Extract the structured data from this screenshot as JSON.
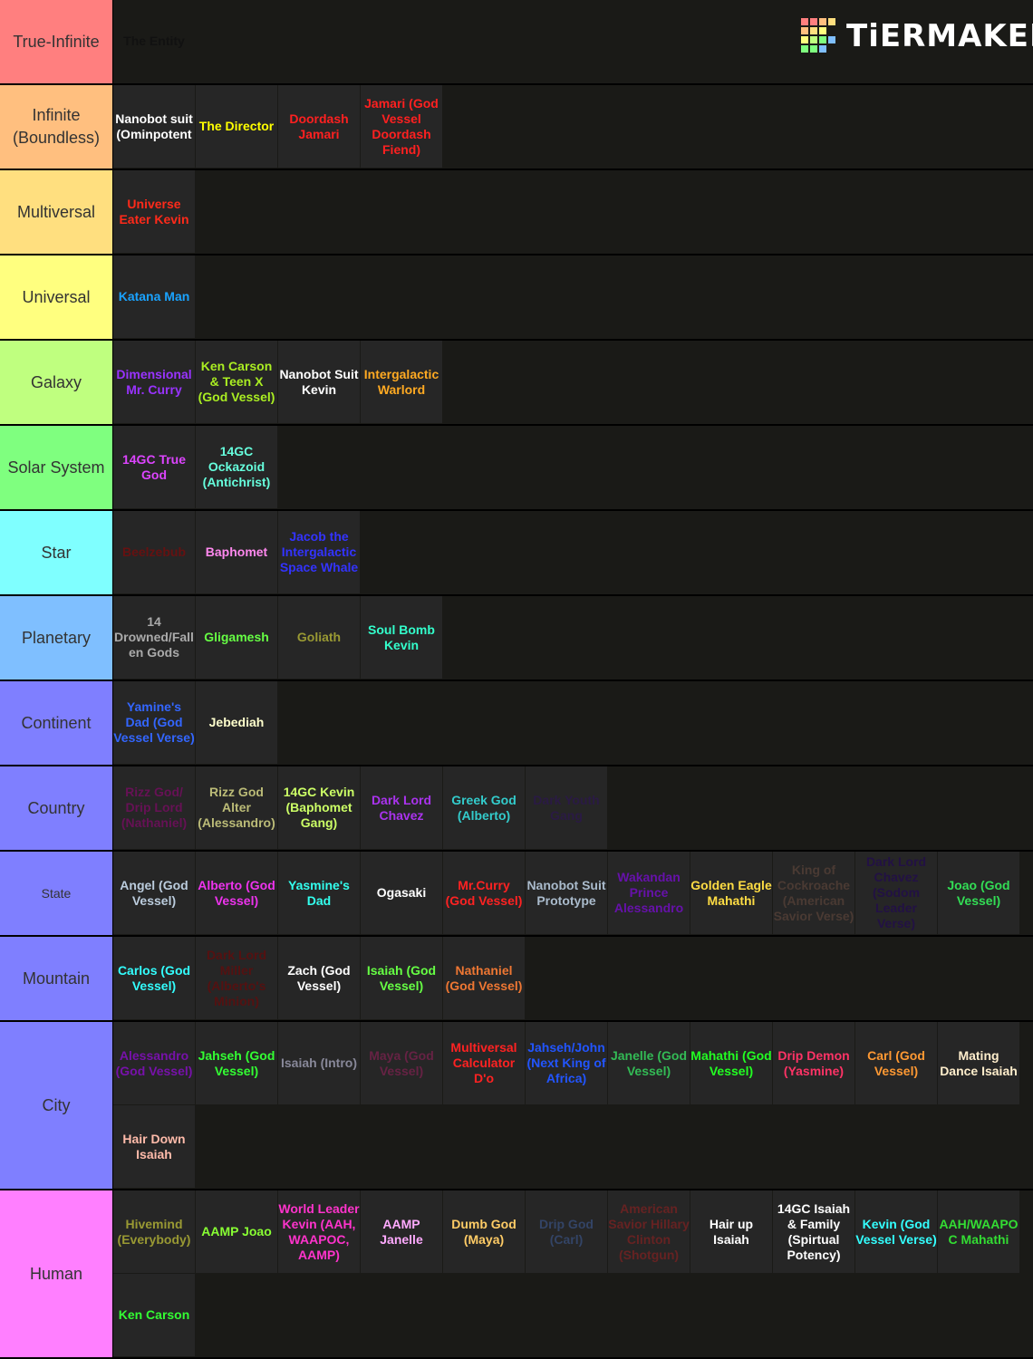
{
  "logo": "TiERMAKER",
  "tiers": [
    {
      "label": "True-Infinite",
      "color": "#ff7f7f",
      "items": [
        {
          "text": "The Entity",
          "color": "#111111"
        }
      ]
    },
    {
      "label": "Infinite (Boundless)",
      "color": "#ffbf7f",
      "items": [
        {
          "text": "Nanobot suit (Ominpotent",
          "color": "#ffffff"
        },
        {
          "text": "The Director",
          "color": "#ffff00"
        },
        {
          "text": "Doordash Jamari",
          "color": "#ff2020"
        },
        {
          "text": "Jamari (God Vessel Doordash Fiend)",
          "color": "#ff2020"
        }
      ]
    },
    {
      "label": "Multiversal",
      "color": "#ffdf7f",
      "items": [
        {
          "text": "Universe Eater Kevin",
          "color": "#ff2a1a"
        }
      ]
    },
    {
      "label": "Universal",
      "color": "#ffff7f",
      "items": [
        {
          "text": "Katana Man",
          "color": "#1aa3ff"
        }
      ]
    },
    {
      "label": "Galaxy",
      "color": "#bfff7f",
      "items": [
        {
          "text": "Dimensional Mr. Curry",
          "color": "#9933ff"
        },
        {
          "text": "Ken Carson & Teen X (God Vessel)",
          "color": "#aaee22"
        },
        {
          "text": "Nanobot Suit Kevin",
          "color": "#ffffff"
        },
        {
          "text": "Intergalactic Warlord",
          "color": "#ffaa22"
        }
      ]
    },
    {
      "label": "Solar System",
      "color": "#7fff7f",
      "items": [
        {
          "text": "14GC True God",
          "color": "#dd44ff"
        },
        {
          "text": "14GC Ockazoid (Antichrist)",
          "color": "#66ffdd"
        }
      ]
    },
    {
      "label": "Star",
      "color": "#7fffff",
      "items": [
        {
          "text": "Beelzebub",
          "color": "#661111"
        },
        {
          "text": "Baphomet",
          "color": "#ff88ee"
        },
        {
          "text": "Jacob the Intergalactic Space Whale",
          "color": "#3333ff"
        }
      ]
    },
    {
      "label": "Planetary",
      "color": "#7fbfff",
      "items": [
        {
          "text": "14 Drowned/Fallen Gods",
          "color": "#aaaaaa"
        },
        {
          "text": "Gligamesh",
          "color": "#66ff44"
        },
        {
          "text": "Goliath",
          "color": "#999933"
        },
        {
          "text": "Soul Bomb Kevin",
          "color": "#33ffcc"
        }
      ]
    },
    {
      "label": "Continent",
      "color": "#7f7fff",
      "items": [
        {
          "text": "Yamine's Dad (God Vessel Verse)",
          "color": "#3366ff"
        },
        {
          "text": "Jebediah",
          "color": "#ffffcc"
        }
      ]
    },
    {
      "label": "Country",
      "color": "#7f7fff",
      "items": [
        {
          "text": "Rizz God/ Drip Lord (Nathaniel)",
          "color": "#661155"
        },
        {
          "text": "Rizz God Alter (Alessandro)",
          "color": "#bbbb77"
        },
        {
          "text": "14GC Kevin (Baphomet Gang)",
          "color": "#ccff66"
        },
        {
          "text": "Dark Lord Chavez",
          "color": "#aa33ee"
        },
        {
          "text": "Greek God (Alberto)",
          "color": "#33cccc"
        },
        {
          "text": "Dark Youth Gang",
          "color": "#2a1a44"
        }
      ]
    },
    {
      "label": "State",
      "color": "#7f7fff",
      "items": [
        {
          "text": "Angel (God Vessel)",
          "color": "#bbccdd"
        },
        {
          "text": "Alberto (God Vessel)",
          "color": "#ee33ee"
        },
        {
          "text": "Yasmine's Dad",
          "color": "#33ffee"
        },
        {
          "text": "Ogasaki",
          "color": "#ffffff"
        },
        {
          "text": "Mr.Curry (God Vessel)",
          "color": "#ff2222"
        },
        {
          "text": "Nanobot Suit Prototype",
          "color": "#aabbcc"
        },
        {
          "text": "Wakandan Prince Alessandro",
          "color": "#6611aa"
        },
        {
          "text": "Golden Eagle Mahathi",
          "color": "#ffdd44"
        },
        {
          "text": "King of Cockroache (American Savior Verse)",
          "color": "#4a3a33"
        },
        {
          "text": "Dark Lord Chavez (Sodom Leader Verse)",
          "color": "#221144"
        },
        {
          "text": "Joao (God Vessel)",
          "color": "#33dd55"
        }
      ]
    },
    {
      "label": "Mountain",
      "color": "#7f7fff",
      "items": [
        {
          "text": "Carlos (God Vessel)",
          "color": "#33ffff"
        },
        {
          "text": "Dark Lord Miller (Alberto's Minion)",
          "color": "#551111"
        },
        {
          "text": "Zach (God Vessel)",
          "color": "#ffffff"
        },
        {
          "text": "Isaiah (God Vessel)",
          "color": "#66ff44"
        },
        {
          "text": "Nathaniel (God Vessel)",
          "color": "#ee7733"
        }
      ]
    },
    {
      "label": "City",
      "color": "#7f7fff",
      "items": [
        {
          "text": "Alessandro (God Vessel)",
          "color": "#7711aa"
        },
        {
          "text": "Jahseh (God Vessel)",
          "color": "#33ff33"
        },
        {
          "text": "Isaiah (Intro)",
          "color": "#888899"
        },
        {
          "text": "Maya (God Vessel)",
          "color": "#662244"
        },
        {
          "text": "Multiversal Calculator D'o",
          "color": "#ff2222"
        },
        {
          "text": "Jahseh/John (Next King of Africa)",
          "color": "#2255ff"
        },
        {
          "text": "Janelle (God Vessel)",
          "color": "#33bb55"
        },
        {
          "text": "Mahathi (God Vessel)",
          "color": "#22ff22"
        },
        {
          "text": "Drip Demon (Yasmine)",
          "color": "#ff3366"
        },
        {
          "text": "Carl (God Vessel)",
          "color": "#ff9933"
        },
        {
          "text": "Mating Dance Isaiah",
          "color": "#ffeecc"
        },
        {
          "text": "Hair Down Isaiah",
          "color": "#ffbbaa"
        }
      ]
    },
    {
      "label": "Human",
      "color": "#ff7fff",
      "items": [
        {
          "text": "Hivemind (Everybody)",
          "color": "#999933"
        },
        {
          "text": "AAMP Joao",
          "color": "#88ff33"
        },
        {
          "text": "World Leader Kevin (AAH, WAAPOC, AAMP)",
          "color": "#ff33cc"
        },
        {
          "text": "AAMP Janelle",
          "color": "#ffaaff"
        },
        {
          "text": "Dumb God (Maya)",
          "color": "#ffcc66"
        },
        {
          "text": "Drip God (Carl)",
          "color": "#334466"
        },
        {
          "text": "American Savior Hillary Clinton (Shotgun)",
          "color": "#662222"
        },
        {
          "text": "Hair up Isaiah",
          "color": "#ffffff"
        },
        {
          "text": "14GC Isaiah & Family (Spirtual Potency)",
          "color": "#ffffff"
        },
        {
          "text": "Kevin (God Vessel Verse)",
          "color": "#33ffff"
        },
        {
          "text": "AAH/WAAPOC Mahathi",
          "color": "#33dd33"
        },
        {
          "text": "Ken Carson",
          "color": "#33ff33"
        }
      ]
    }
  ]
}
